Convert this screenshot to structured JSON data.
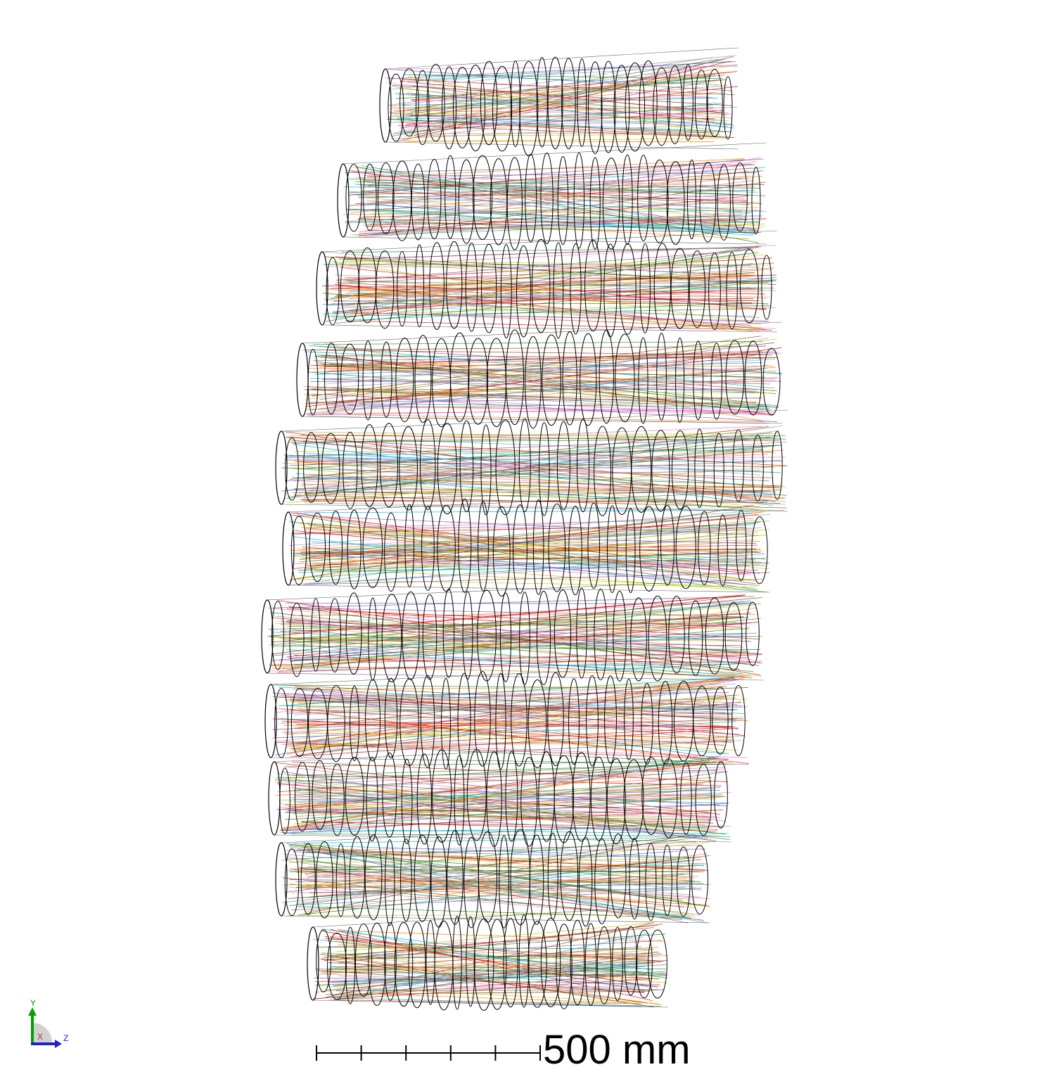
{
  "scale_bar": {
    "label": "500 mm",
    "tick_count": 5
  },
  "axis_triad": {
    "y_label": "Y",
    "z_label": "Z",
    "x_label": "X",
    "colors": {
      "y": "#00a000",
      "z": "#2020d0",
      "x": "#c03030"
    }
  },
  "layout_view": {
    "element_outline_color": "#000000",
    "ray_colors": [
      "#7f5fa0",
      "#2e8b2e",
      "#ff7f00",
      "#00b4d8",
      "#e01010",
      "#8b4513",
      "#a0a0a0",
      "#c8c800",
      "#e377c2"
    ],
    "stack_count": 11
  }
}
